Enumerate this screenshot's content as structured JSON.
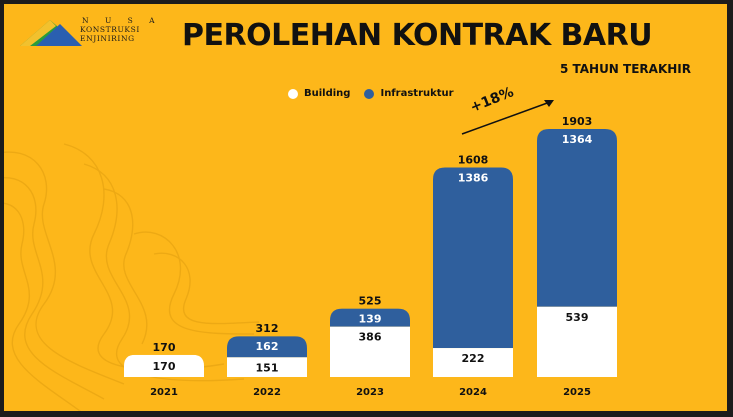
{
  "logo": {
    "line1": "N U S A",
    "line2": "KONSTRUKSI",
    "line3": "ENJINIRING"
  },
  "title": "PEROLEHAN KONTRAK BARU",
  "subtitle": "5 TAHUN TERAKHIR",
  "growth_label": "+18%",
  "colors": {
    "background": "#fdb71a",
    "building": "#ffffff",
    "infrastruktur": "#2f5f9d",
    "text": "#111111"
  },
  "chart_data": {
    "type": "bar",
    "stacked": true,
    "categories": [
      "2021",
      "2022",
      "2023",
      "2024",
      "2025"
    ],
    "series": [
      {
        "name": "Building",
        "color": "#ffffff",
        "values": [
          170,
          151,
          386,
          222,
          539
        ]
      },
      {
        "name": "Infrastruktur",
        "color": "#2f5f9d",
        "values": [
          0,
          162,
          139,
          1386,
          1364
        ]
      }
    ],
    "totals": [
      170,
      312,
      525,
      1608,
      1903
    ],
    "segment_labels": {
      "Building": [
        "170",
        "151",
        "386",
        "222",
        "539"
      ],
      "Infrastruktur": [
        "",
        "162",
        "139",
        "1386",
        "1364"
      ]
    },
    "legend_position": "top-center",
    "grid": false,
    "ylim": [
      0,
      1903
    ]
  }
}
